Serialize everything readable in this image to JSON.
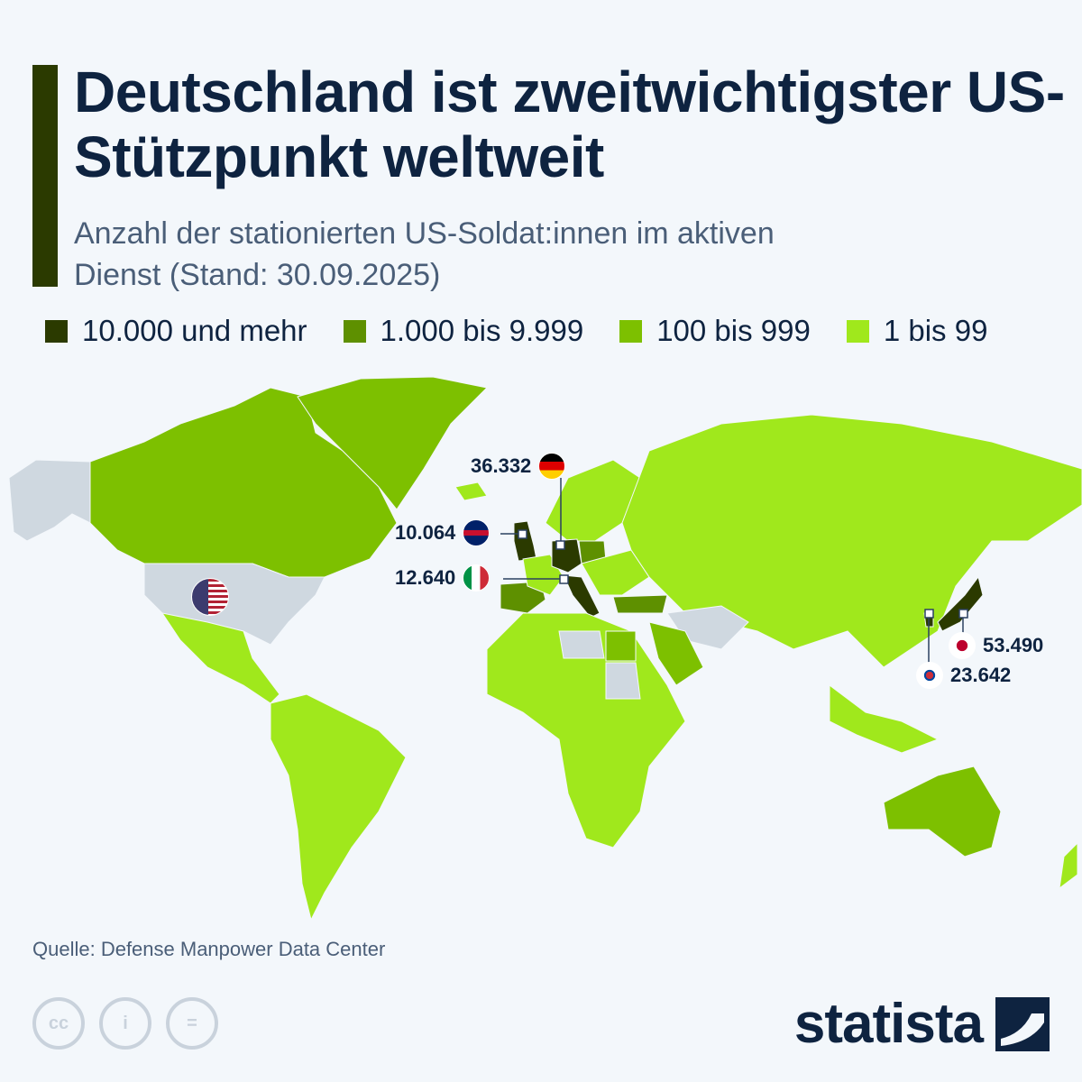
{
  "title": "Deutschland ist zweitwichtigster US-Stützpunkt weltweit",
  "subtitle": "Anzahl der stationierten US-Soldat:innen im aktiven Dienst (Stand: 30.09.2025)",
  "legend": [
    {
      "label": "10.000 und mehr",
      "color": "#2b3a00"
    },
    {
      "label": "1.000 bis 9.999",
      "color": "#5e9000"
    },
    {
      "label": "100 bis 999",
      "color": "#7dc000"
    },
    {
      "label": "1 bis 99",
      "color": "#a0e81c"
    }
  ],
  "no_data_color": "#cfd8e0",
  "chart_data": {
    "type": "choropleth",
    "labeled_countries": [
      {
        "country": "Germany",
        "value": "36.332",
        "flag": "de-flag-icon"
      },
      {
        "country": "United Kingdom",
        "value": "10.064",
        "flag": "uk-flag-icon"
      },
      {
        "country": "Italy",
        "value": "12.640",
        "flag": "it-flag-icon"
      },
      {
        "country": "Japan",
        "value": "53.490",
        "flag": "jp-flag-icon"
      },
      {
        "country": "South Korea",
        "value": "23.642",
        "flag": "kr-flag-icon"
      },
      {
        "country": "United States",
        "value": "",
        "flag": "us-flag-icon"
      }
    ]
  },
  "source": "Quelle: Defense Manpower Data Center",
  "brand": "statista"
}
